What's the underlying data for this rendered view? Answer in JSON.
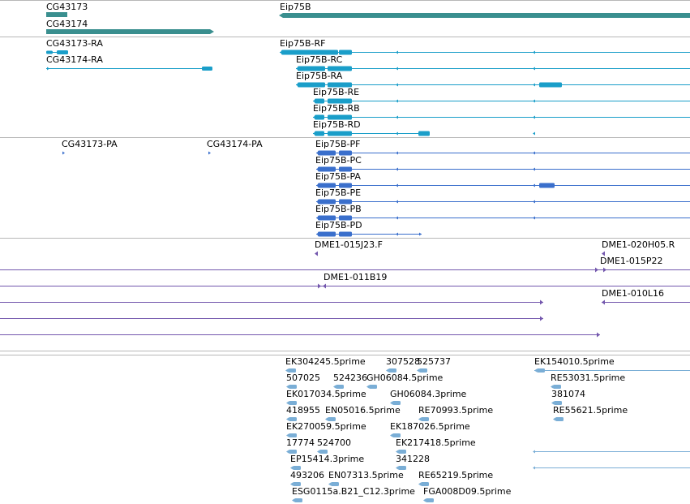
{
  "colors": {
    "gene": "#3a8f8f",
    "mrna": "#1a9ec9",
    "protein": "#3a6fcc",
    "est": "#7357ad",
    "cdna": "#7aaed6",
    "separator": "#b8b8b8"
  },
  "gene_track": {
    "labels": [
      "CG43173",
      "CG43174",
      "Eip75B"
    ]
  },
  "transcript_track": {
    "labels": [
      "CG43173-RA",
      "CG43174-RA",
      "Eip75B-RF",
      "Eip75B-RC",
      "Eip75B-RA",
      "Eip75B-RE",
      "Eip75B-RB",
      "Eip75B-RD"
    ]
  },
  "protein_track": {
    "labels": [
      "CG43173-PA",
      "CG43174-PA",
      "Eip75B-PF",
      "Eip75B-PC",
      "Eip75B-PA",
      "Eip75B-PE",
      "Eip75B-PB",
      "Eip75B-PD"
    ]
  },
  "clone_track": {
    "labels": [
      "DME1-015J23.F",
      "DME1-020H05.R",
      "DME1-015P22",
      "DME1-011B19",
      "DME1-010L16"
    ]
  },
  "cdna_track": {
    "labels": [
      "EK304245.5prime",
      "307528",
      "525737",
      "EK154010.5prime",
      "507025",
      "524236",
      "GH06084.5prime",
      "RE53031.5prime",
      "EK017034.5prime",
      "GH06084.3prime",
      "381074",
      "418955",
      "EN05016.5prime",
      "RE70993.5prime",
      "RE55621.5prime",
      "EK270059.5prime",
      "EK187026.5prime",
      "17774",
      "524700",
      "EK217418.5prime",
      "EP15414.3prime",
      "341228",
      "493206",
      "EN07313.5prime",
      "RE65219.5prime",
      "ESG0115a.B21_C12.3prime",
      "FGA008D09.5prime"
    ]
  }
}
